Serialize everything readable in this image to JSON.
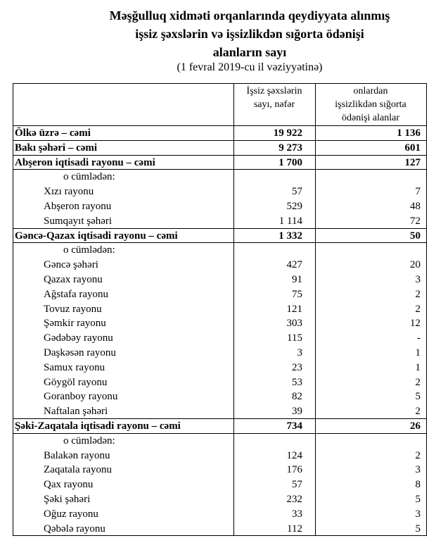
{
  "header": {
    "title": [
      "Məşğulluq xidməti orqanlarında qeydiyyata alınmış",
      "işsiz şəxslərin və işsizlikdən sığorta ödənişi",
      "alanların sayı"
    ],
    "subtitle": "(1 fevral 2019-cu il vəziyyətinə)"
  },
  "table": {
    "columns": [
      [
        "İşsiz şəxslərin",
        "sayı, nəfər"
      ],
      [
        "onlardan",
        "işsizlikdən sığorta",
        "ödənişi alanlar"
      ]
    ],
    "rows": [
      {
        "label": "Ölkə üzrə – cəmi",
        "values": [
          "19 922",
          "1 136"
        ],
        "bold": true
      },
      {
        "label": "Bakı şəhəri – cəmi",
        "values": [
          "9 273",
          "601"
        ],
        "bold": true
      },
      {
        "label": "Abşeron iqtisadi rayonu – cəmi",
        "values": [
          "1 700",
          "127"
        ],
        "bold": true
      },
      {
        "label": "o cümlədən:",
        "sub": true
      },
      {
        "label": "Xızı rayonu",
        "values": [
          "57",
          "7"
        ]
      },
      {
        "label": "Abşeron rayonu",
        "values": [
          "529",
          "48"
        ]
      },
      {
        "label": "Sumqayıt şəhəri",
        "values": [
          "1 114",
          "72"
        ]
      },
      {
        "label": "Gəncə-Qazax iqtisadi rayonu – cəmi",
        "values": [
          "1 332",
          "50"
        ],
        "bold": true
      },
      {
        "label": "o cümlədən:",
        "sub": true
      },
      {
        "label": "Gəncə şəhəri",
        "values": [
          "427",
          "20"
        ]
      },
      {
        "label": "Qazax rayonu",
        "values": [
          "91",
          "3"
        ]
      },
      {
        "label": "Ağstafa rayonu",
        "values": [
          "75",
          "2"
        ]
      },
      {
        "label": "Tovuz rayonu",
        "values": [
          "121",
          "2"
        ]
      },
      {
        "label": "Şəmkir rayonu",
        "values": [
          "303",
          "12"
        ]
      },
      {
        "label": "Gədəbəy rayonu",
        "values": [
          "115",
          "-"
        ]
      },
      {
        "label": "Daşkəsən rayonu",
        "values": [
          "3",
          "1"
        ]
      },
      {
        "label": "Samux rayonu",
        "values": [
          "23",
          "1"
        ]
      },
      {
        "label": "Göygöl rayonu",
        "values": [
          "53",
          "2"
        ]
      },
      {
        "label": "Goranboy rayonu",
        "values": [
          "82",
          "5"
        ]
      },
      {
        "label": "Naftalan şəhəri",
        "values": [
          "39",
          "2"
        ]
      },
      {
        "label": "Şəki-Zaqatala iqtisadi rayonu – cəmi",
        "values": [
          "734",
          "26"
        ],
        "bold": true
      },
      {
        "label": "o cümlədən:",
        "sub": true
      },
      {
        "label": "Balakən rayonu",
        "values": [
          "124",
          "2"
        ]
      },
      {
        "label": "Zaqatala rayonu",
        "values": [
          "176",
          "3"
        ]
      },
      {
        "label": "Qax rayonu",
        "values": [
          "57",
          "8"
        ]
      },
      {
        "label": "Şəki şəhəri",
        "values": [
          "232",
          "5"
        ]
      },
      {
        "label": "Oğuz rayonu",
        "values": [
          "33",
          "3"
        ]
      },
      {
        "label": "Qəbələ rayonu",
        "values": [
          "112",
          "5"
        ]
      }
    ]
  }
}
